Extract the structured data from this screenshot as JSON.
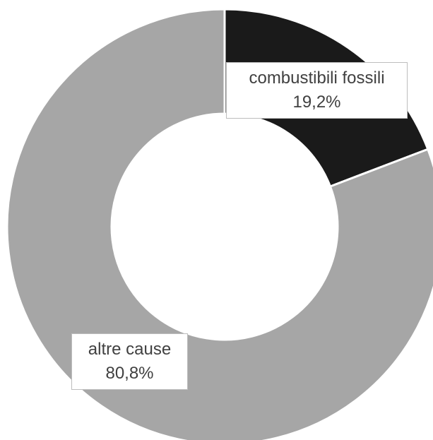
{
  "chart_data": {
    "type": "pie",
    "variant": "doughnut",
    "title": "",
    "slices": [
      {
        "label": "combustibili fossili",
        "value": 19.2,
        "value_label": "19,2%",
        "color": "#1a1a1a"
      },
      {
        "label": "altre cause",
        "value": 80.8,
        "value_label": "80,8%",
        "color": "#a6a6a6"
      }
    ],
    "start_angle_deg": 0,
    "direction": "clockwise",
    "legend": "none"
  }
}
